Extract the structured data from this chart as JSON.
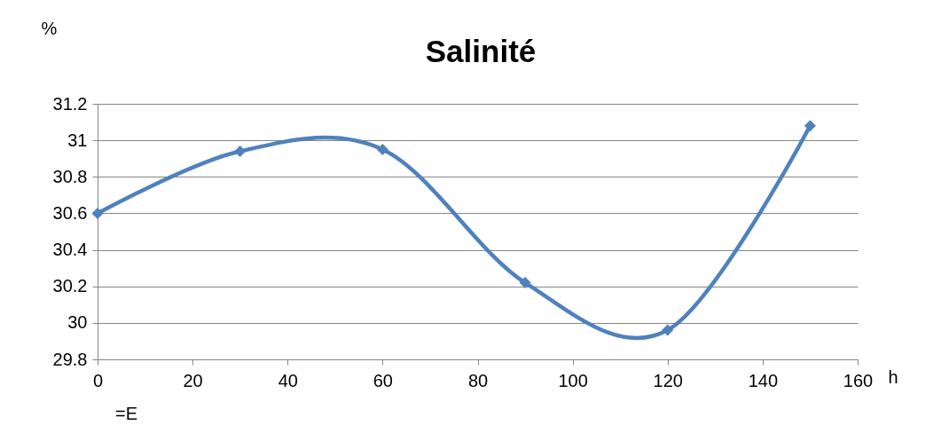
{
  "chart_data": {
    "type": "line",
    "title": "Salinité",
    "xlabel": "h",
    "ylabel": "%",
    "annotations": [
      "=E"
    ],
    "x": [
      0,
      30,
      60,
      90,
      120,
      150
    ],
    "series": [
      {
        "color": "#4f81bd",
        "values": [
          30.6,
          30.94,
          30.95,
          30.22,
          29.96,
          31.08
        ]
      }
    ],
    "xlim": [
      0,
      160
    ],
    "xticks": [
      0,
      20,
      40,
      60,
      80,
      100,
      120,
      140,
      160
    ],
    "ylim": [
      29.8,
      31.2
    ],
    "yticks": [
      29.8,
      30,
      30.2,
      30.4,
      30.6,
      30.8,
      31,
      31.2
    ],
    "grid": "y",
    "marker": "diamond",
    "line_style": "solid"
  }
}
